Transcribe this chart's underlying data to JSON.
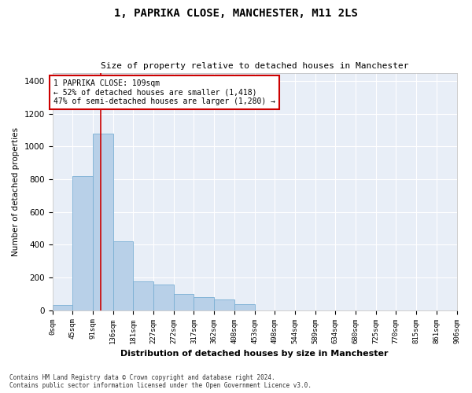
{
  "title_line1": "1, PAPRIKA CLOSE, MANCHESTER, M11 2LS",
  "title_line2": "Size of property relative to detached houses in Manchester",
  "xlabel": "Distribution of detached houses by size in Manchester",
  "ylabel": "Number of detached properties",
  "footnote": "Contains HM Land Registry data © Crown copyright and database right 2024.\nContains public sector information licensed under the Open Government Licence v3.0.",
  "bar_color": "#b8d0e8",
  "bar_edge_color": "#7aafd4",
  "bg_color": "#e8eef7",
  "grid_color": "#ffffff",
  "annotation_box_color": "#cc0000",
  "property_line_color": "#cc0000",
  "property_value": 109,
  "annotation_text_line1": "1 PAPRIKA CLOSE: 109sqm",
  "annotation_text_line2": "← 52% of detached houses are smaller (1,418)",
  "annotation_text_line3": "47% of semi-detached houses are larger (1,280) →",
  "bins": [
    0,
    45,
    91,
    136,
    181,
    227,
    272,
    317,
    362,
    408,
    453,
    498,
    544,
    589,
    634,
    680,
    725,
    770,
    815,
    861,
    906
  ],
  "bin_labels": [
    "0sqm",
    "45sqm",
    "91sqm",
    "136sqm",
    "181sqm",
    "227sqm",
    "272sqm",
    "317sqm",
    "362sqm",
    "408sqm",
    "453sqm",
    "498sqm",
    "544sqm",
    "589sqm",
    "634sqm",
    "680sqm",
    "725sqm",
    "770sqm",
    "815sqm",
    "861sqm",
    "906sqm"
  ],
  "bar_heights": [
    30,
    820,
    1080,
    420,
    175,
    155,
    100,
    80,
    65,
    35,
    0,
    0,
    0,
    0,
    0,
    0,
    0,
    0,
    0,
    0
  ],
  "ylim": [
    0,
    1450
  ],
  "yticks": [
    0,
    200,
    400,
    600,
    800,
    1000,
    1200,
    1400
  ]
}
